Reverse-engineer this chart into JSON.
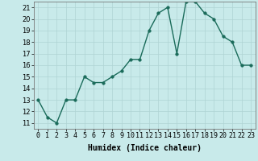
{
  "x": [
    0,
    1,
    2,
    3,
    4,
    5,
    6,
    7,
    8,
    9,
    10,
    11,
    12,
    13,
    14,
    15,
    16,
    17,
    18,
    19,
    20,
    21,
    22,
    23
  ],
  "y": [
    13,
    11.5,
    11,
    13,
    13,
    15,
    14.5,
    14.5,
    15,
    15.5,
    16.5,
    16.5,
    19,
    20.5,
    21,
    17,
    21.5,
    21.5,
    20.5,
    20,
    18.5,
    18,
    16,
    16
  ],
  "line_color": "#1a6b5a",
  "marker_color": "#1a6b5a",
  "bg_color": "#c8eaea",
  "grid_color": "#afd4d4",
  "xlabel": "Humidex (Indice chaleur)",
  "xlim": [
    -0.5,
    23.5
  ],
  "ylim": [
    10.5,
    21.5
  ],
  "yticks": [
    11,
    12,
    13,
    14,
    15,
    16,
    17,
    18,
    19,
    20,
    21
  ],
  "xtick_labels": [
    "0",
    "1",
    "2",
    "3",
    "4",
    "5",
    "6",
    "7",
    "8",
    "9",
    "10",
    "11",
    "12",
    "13",
    "14",
    "15",
    "16",
    "17",
    "18",
    "19",
    "20",
    "21",
    "22",
    "23"
  ],
  "xlabel_fontsize": 7,
  "tick_fontsize": 6,
  "marker_size": 2.5,
  "line_width": 1.0
}
